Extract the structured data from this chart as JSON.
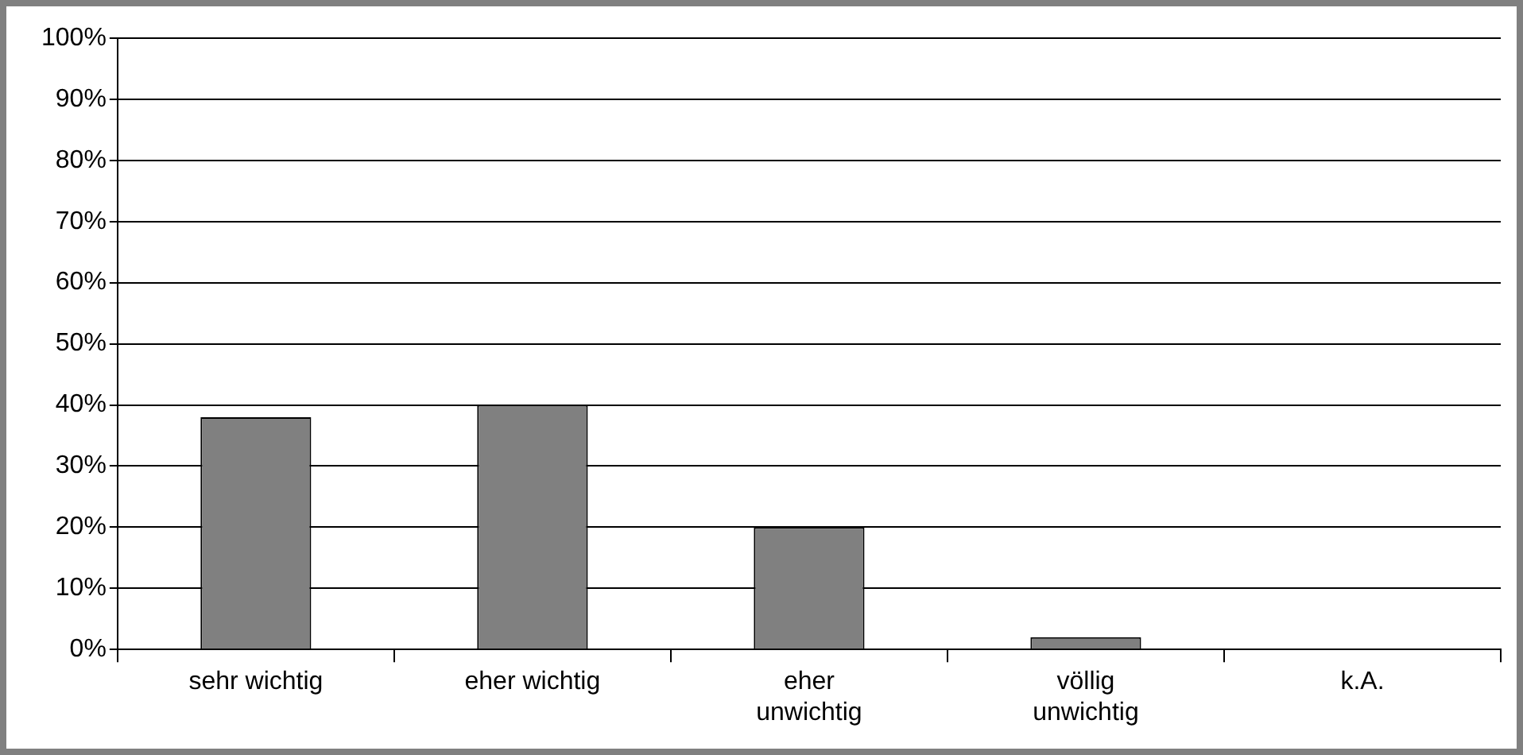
{
  "chart_data": {
    "type": "bar",
    "categories": [
      "sehr wichtig",
      "eher wichtig",
      "eher unwichtig",
      "völlig unwichtig",
      "k.A."
    ],
    "values": [
      38,
      40,
      20,
      2,
      0
    ],
    "color": "#808080",
    "ylim": [
      0,
      100
    ],
    "yticks": [
      {
        "value": 0,
        "label": "0%"
      },
      {
        "value": 10,
        "label": "10%"
      },
      {
        "value": 20,
        "label": "20%"
      },
      {
        "value": 30,
        "label": "30%"
      },
      {
        "value": 40,
        "label": "40%"
      },
      {
        "value": 50,
        "label": "50%"
      },
      {
        "value": 60,
        "label": "60%"
      },
      {
        "value": 70,
        "label": "70%"
      },
      {
        "value": 80,
        "label": "80%"
      },
      {
        "value": 90,
        "label": "90%"
      },
      {
        "value": 100,
        "label": "100%"
      }
    ],
    "grid": "y",
    "legend": false
  }
}
